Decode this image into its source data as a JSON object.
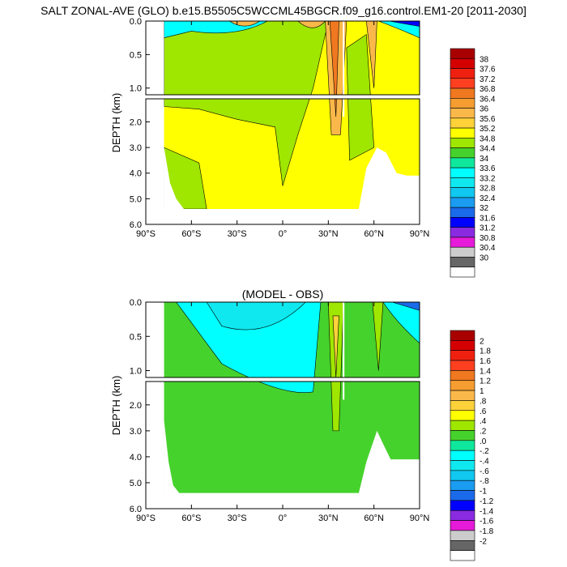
{
  "figure_title": "SALT ZONAL-AVE (GLO) b.e15.B5505C5WCCML45BGCR.f09_g16.control.EM1-20 [2011-2030]",
  "chart_data": [
    {
      "type": "heatmap",
      "subtitle": "",
      "variable": "zonal-mean salinity",
      "xlabel": "",
      "ylabel": "DEPTH (km)",
      "x_ticks": [
        "90°S",
        "60°S",
        "30°S",
        "0°",
        "30°N",
        "60°N",
        "90°N"
      ],
      "x_range": [
        -90,
        90
      ],
      "y_range_km": [
        0,
        6
      ],
      "y_break_km": 1.1,
      "y_ticks_upper": [
        "0.0",
        "0.5",
        "1.0"
      ],
      "y_ticks_lower": [
        "2.0",
        "3.0",
        "4.0",
        "5.0",
        "6.0"
      ],
      "colorbar_levels": [
        "38",
        "37.6",
        "37.2",
        "36.8",
        "36.4",
        "36",
        "35.6",
        "35.2",
        "34.8",
        "34.4",
        "34",
        "33.6",
        "33.2",
        "32.8",
        "32.4",
        "32",
        "31.6",
        "31.2",
        "30.8",
        "30.4",
        "30"
      ],
      "colorbar_colors": [
        "#a80000",
        "#d40000",
        "#f02010",
        "#ff4020",
        "#f07820",
        "#f59d30",
        "#fbb84a",
        "#ffd23a",
        "#ffff00",
        "#9fe600",
        "#46d22c",
        "#0fe89c",
        "#00ffff",
        "#10e8ef",
        "#10c8f0",
        "#1a9cf0",
        "#1a6aea",
        "#0000ff",
        "#8a2be2",
        "#e61ad9",
        "#cccccc",
        "#666666",
        "#ffffff"
      ],
      "dominant_value_upper_ocean": 34.4,
      "dominant_value_deep_ocean": 34.8,
      "max_value_region": "30°N–40°N, 0–1.5 km, 36+",
      "min_value_region": "near 70°N–85°N surface, below 32"
    },
    {
      "type": "heatmap",
      "subtitle": "(MODEL - OBS)",
      "variable": "salinity bias",
      "xlabel": "",
      "ylabel": "DEPTH (km)",
      "x_ticks": [
        "90°S",
        "60°S",
        "30°S",
        "0°",
        "30°N",
        "60°N",
        "90°N"
      ],
      "x_range": [
        -90,
        90
      ],
      "y_range_km": [
        0,
        6
      ],
      "y_break_km": 1.1,
      "y_ticks_upper": [
        "0.0",
        "0.5",
        "1.0"
      ],
      "y_ticks_lower": [
        "2.0",
        "3.0",
        "4.0",
        "5.0",
        "6.0"
      ],
      "colorbar_levels": [
        "2",
        "1.8",
        "1.6",
        "1.4",
        "1.2",
        "1",
        ".8",
        ".6",
        ".4",
        ".2",
        ".0",
        "-.2",
        "-.4",
        "-.6",
        "-.8",
        "-1",
        "-1.2",
        "-1.4",
        "-1.6",
        "-1.8",
        "-2"
      ],
      "colorbar_colors": [
        "#a80000",
        "#d40000",
        "#f02010",
        "#ff4020",
        "#f07820",
        "#f59d30",
        "#fbb84a",
        "#ffd23a",
        "#ffff00",
        "#9fe600",
        "#46d22c",
        "#0fe89c",
        "#00ffff",
        "#10e8ef",
        "#10c8f0",
        "#1a9cf0",
        "#1a6aea",
        "#0000ff",
        "#8a2be2",
        "#e61ad9",
        "#cccccc",
        "#666666",
        "#ffffff"
      ],
      "dominant_value_deep_ocean": 0.1,
      "dominant_value_upper_ocean": -0.3,
      "max_value_region": "30°N–40°N, 0–1.5 km, +0.4 to +0.6",
      "min_value_region": "near 65°N–85°N surface, -1 to -2"
    }
  ]
}
